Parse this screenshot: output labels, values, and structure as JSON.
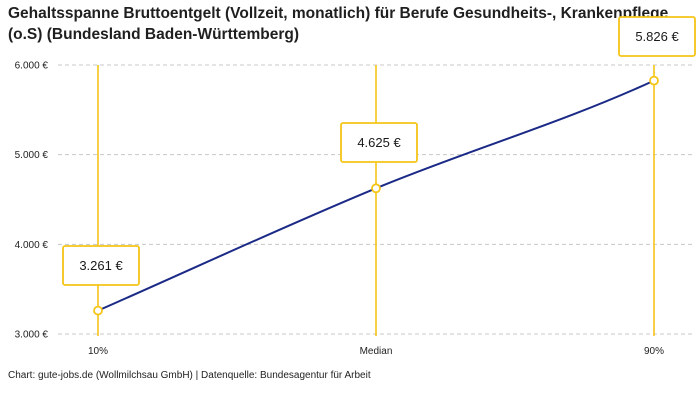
{
  "chart_data": {
    "type": "line",
    "title": "Gehaltsspanne Bruttoentgelt (Vollzeit, monatlich) für Berufe Gesundheits-, Krankenpflege (o.S) (Bundesland Baden-Württemberg)",
    "categories": [
      "10%",
      "Median",
      "90%"
    ],
    "series": [
      {
        "values": [
          3261,
          4625,
          5826
        ]
      }
    ],
    "data_labels": [
      "3.261 €",
      "4.625 €",
      "5.826 €"
    ],
    "y_ticks": [
      3000,
      4000,
      5000,
      6000
    ],
    "y_tick_labels": [
      "3.000 €",
      "4.000 €",
      "5.000 €",
      "6.000 €"
    ],
    "ylim": [
      3000,
      6000
    ],
    "grid": "horizontal dashed",
    "colors": {
      "line": "#1b2a86",
      "accent": "#f5c518",
      "grid": "#c8c8c8"
    }
  },
  "source": "Chart: gute-jobs.de (Wollmilchsau GmbH) | Datenquelle: Bundesagentur für Arbeit"
}
